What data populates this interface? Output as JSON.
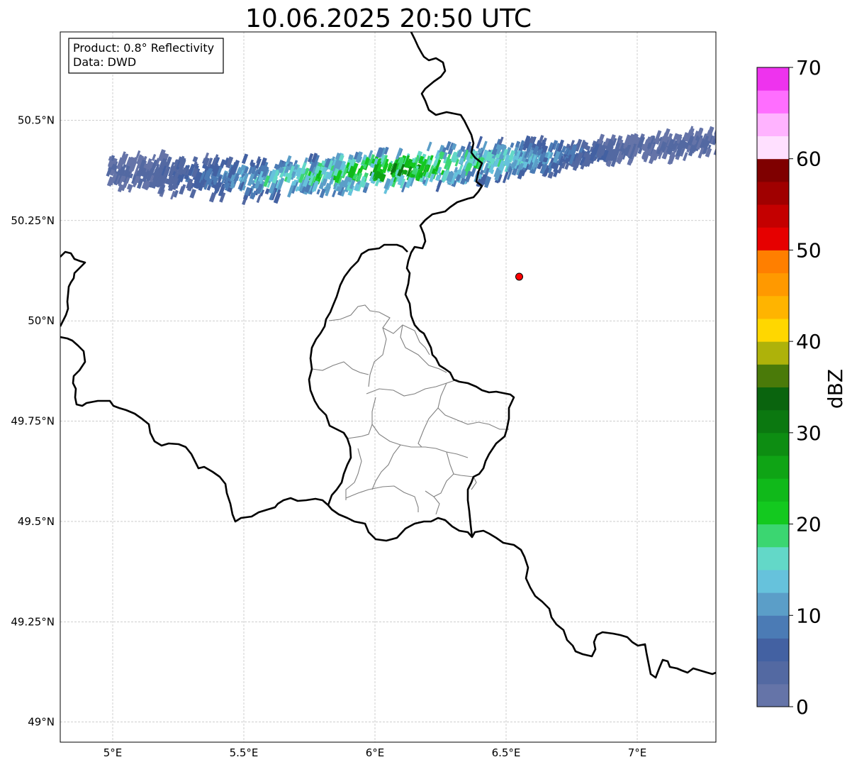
{
  "title": "10.06.2025 20:50 UTC",
  "info_box": {
    "product_line": "Product: 0.8° Reflectivity",
    "data_line": "Data: DWD"
  },
  "map": {
    "lon_range": [
      4.8,
      7.3
    ],
    "lat_range": [
      48.95,
      50.72
    ],
    "lon_ticks": [
      {
        "value": 5.0,
        "label": "5°E"
      },
      {
        "value": 5.5,
        "label": "5.5°E"
      },
      {
        "value": 6.0,
        "label": "6°E"
      },
      {
        "value": 6.5,
        "label": "6.5°E"
      },
      {
        "value": 7.0,
        "label": "7°E"
      }
    ],
    "lat_ticks": [
      {
        "value": 50.5,
        "label": "50.5°N"
      },
      {
        "value": 50.25,
        "label": "50.25°N"
      },
      {
        "value": 50.0,
        "label": "50°N"
      },
      {
        "value": 49.75,
        "label": "49.75°N"
      },
      {
        "value": 49.5,
        "label": "49.5°N"
      },
      {
        "value": 49.25,
        "label": "49.25°N"
      },
      {
        "value": 49.0,
        "label": "49°N"
      }
    ],
    "gridlines": true,
    "radar_site": {
      "lon": 6.55,
      "lat": 50.11,
      "color": "#ff0000"
    },
    "precip_band": {
      "lon_range": [
        4.98,
        7.3
      ],
      "lat_range": [
        50.3,
        50.47
      ],
      "max_dbz_approx": 33
    },
    "border_color": "#000000",
    "district_border_color": "#808080"
  },
  "colorbar": {
    "label": "dBZ",
    "min": 0,
    "max": 70,
    "tick_labels": [
      "0",
      "10",
      "20",
      "30",
      "40",
      "50",
      "60",
      "70"
    ],
    "levels": [
      {
        "from": 0,
        "color": "#6574a8"
      },
      {
        "from": 2.5,
        "color": "#5369a2"
      },
      {
        "from": 5,
        "color": "#4361a2"
      },
      {
        "from": 7.5,
        "color": "#4b7bb5"
      },
      {
        "from": 10,
        "color": "#5b9ec8"
      },
      {
        "from": 12.5,
        "color": "#66c2dc"
      },
      {
        "from": 15,
        "color": "#63d8c8"
      },
      {
        "from": 17.5,
        "color": "#3bd671"
      },
      {
        "from": 20,
        "color": "#13c91f"
      },
      {
        "from": 22.5,
        "color": "#10b91a"
      },
      {
        "from": 25,
        "color": "#0fa415"
      },
      {
        "from": 27.5,
        "color": "#0d8d12"
      },
      {
        "from": 30,
        "color": "#0b7810"
      },
      {
        "from": 32.5,
        "color": "#0a640e"
      },
      {
        "from": 35,
        "color": "#4a7a09"
      },
      {
        "from": 37.5,
        "color": "#aeb20a"
      },
      {
        "from": 40,
        "color": "#ffd700"
      },
      {
        "from": 42.5,
        "color": "#ffb400"
      },
      {
        "from": 45,
        "color": "#ff9900"
      },
      {
        "from": 47.5,
        "color": "#ff7f00"
      },
      {
        "from": 50,
        "color": "#e60000"
      },
      {
        "from": 52.5,
        "color": "#c40000"
      },
      {
        "from": 55,
        "color": "#a00000"
      },
      {
        "from": 57.5,
        "color": "#7f0000"
      },
      {
        "from": 60,
        "color": "#ffe0ff"
      },
      {
        "from": 62.5,
        "color": "#ffb3ff"
      },
      {
        "from": 65,
        "color": "#ff6eff"
      },
      {
        "from": 67.5,
        "color": "#ee33ee"
      }
    ]
  }
}
